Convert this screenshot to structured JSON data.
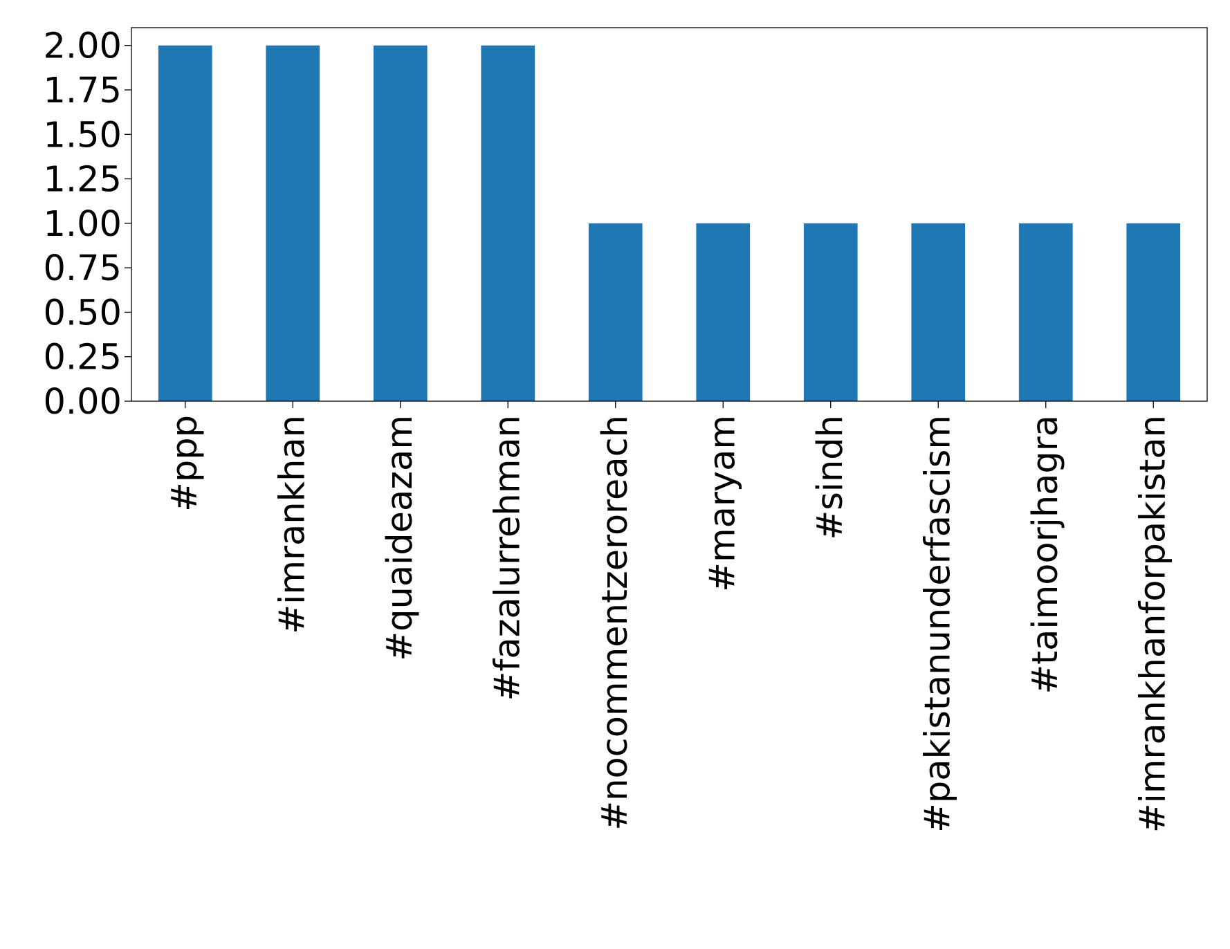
{
  "chart_data": {
    "type": "bar",
    "categories": [
      "#ppp",
      "#imrankhan",
      "#quaideazam",
      "#fazalurrehman",
      "#nocommentzeroreach",
      "#maryam",
      "#sindh",
      "#pakistanunderfascism",
      "#taimoorjhagra",
      "#imrankhanforpakistan"
    ],
    "values": [
      2,
      2,
      2,
      2,
      1,
      1,
      1,
      1,
      1,
      1
    ],
    "ylim": [
      0,
      2.1
    ],
    "yticks": [
      "0.00",
      "0.25",
      "0.50",
      "0.75",
      "1.00",
      "1.25",
      "1.50",
      "1.75",
      "2.00"
    ],
    "bar_color": "#1f77b4",
    "grid": false,
    "legend": "none"
  }
}
